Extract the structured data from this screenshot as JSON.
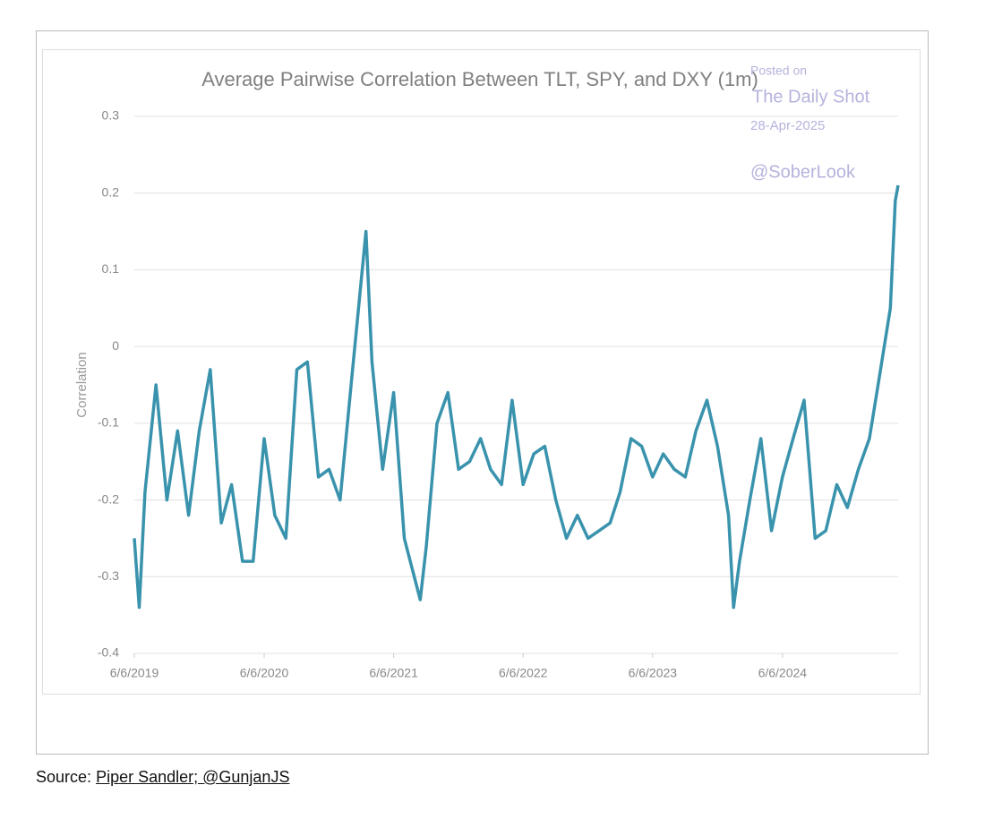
{
  "chart_data": {
    "type": "line",
    "title": "Average Pairwise Correlation Between TLT, SPY, and DXY (1m)",
    "y_label": "Correlation",
    "annotations": [
      "Posted on",
      "The Daily Shot",
      "28-Apr-2025",
      "@SoberLook"
    ],
    "xlim": [
      "6/6/2019",
      "4/28/2025"
    ],
    "xticks": [
      "6/6/2019",
      "6/6/2020",
      "6/6/2021",
      "6/6/2022",
      "6/6/2023",
      "6/6/2024"
    ],
    "ylim": [
      -0.4,
      0.3
    ],
    "yticks": [
      0.3,
      0.2,
      0.1,
      0,
      -0.1,
      -0.2,
      -0.3,
      -0.4
    ],
    "grid": true,
    "x": [
      "6/6/2019",
      "6/20/2019",
      "7/6/2019",
      "8/6/2019",
      "9/6/2019",
      "10/6/2019",
      "11/6/2019",
      "12/6/2019",
      "1/6/2020",
      "2/6/2020",
      "3/6/2020",
      "4/6/2020",
      "5/6/2020",
      "6/6/2020",
      "7/6/2020",
      "8/6/2020",
      "9/6/2020",
      "10/6/2020",
      "11/6/2020",
      "12/6/2020",
      "1/6/2021",
      "2/6/2021",
      "3/20/2021",
      "4/6/2021",
      "5/6/2021",
      "6/6/2021",
      "7/6/2021",
      "8/20/2021",
      "9/6/2021",
      "10/6/2021",
      "11/6/2021",
      "12/6/2021",
      "1/6/2022",
      "2/6/2022",
      "3/6/2022",
      "4/6/2022",
      "5/6/2022",
      "6/6/2022",
      "7/6/2022",
      "8/6/2022",
      "9/6/2022",
      "10/6/2022",
      "11/6/2022",
      "12/6/2022",
      "1/6/2023",
      "2/6/2023",
      "3/6/2023",
      "4/6/2023",
      "5/6/2023",
      "6/6/2023",
      "7/6/2023",
      "8/6/2023",
      "9/6/2023",
      "10/6/2023",
      "11/6/2023",
      "12/6/2023",
      "1/6/2024",
      "1/20/2024",
      "2/6/2024",
      "3/6/2024",
      "4/6/2024",
      "5/6/2024",
      "6/6/2024",
      "7/6/2024",
      "8/6/2024",
      "9/6/2024",
      "10/6/2024",
      "11/6/2024",
      "12/6/2024",
      "1/6/2025",
      "2/6/2025",
      "3/6/2025",
      "4/6/2025",
      "4/20/2025",
      "4/28/2025"
    ],
    "series": [
      {
        "name": "Correlation",
        "color": "#3a93ad",
        "values": [
          -0.25,
          -0.34,
          -0.19,
          -0.05,
          -0.2,
          -0.11,
          -0.22,
          -0.11,
          -0.03,
          -0.23,
          -0.18,
          -0.28,
          -0.28,
          -0.12,
          -0.22,
          -0.25,
          -0.03,
          -0.02,
          -0.17,
          -0.16,
          -0.2,
          -0.05,
          0.15,
          -0.02,
          -0.16,
          -0.06,
          -0.25,
          -0.33,
          -0.26,
          -0.1,
          -0.06,
          -0.16,
          -0.15,
          -0.12,
          -0.16,
          -0.18,
          -0.07,
          -0.18,
          -0.14,
          -0.13,
          -0.2,
          -0.25,
          -0.22,
          -0.25,
          -0.24,
          -0.23,
          -0.19,
          -0.12,
          -0.13,
          -0.17,
          -0.14,
          -0.16,
          -0.17,
          -0.11,
          -0.07,
          -0.13,
          -0.22,
          -0.34,
          -0.28,
          -0.2,
          -0.12,
          -0.24,
          -0.17,
          -0.12,
          -0.07,
          -0.25,
          -0.24,
          -0.18,
          -0.21,
          -0.16,
          -0.12,
          -0.04,
          0.05,
          0.19,
          0.21
        ]
      }
    ]
  },
  "source": {
    "label": "Source:",
    "link": "Piper Sandler; @GunjanJS"
  }
}
